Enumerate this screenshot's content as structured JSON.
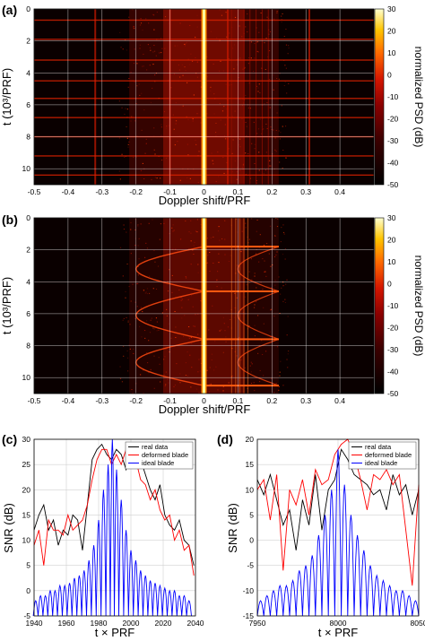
{
  "colors": {
    "background": "#ffffff",
    "spectrogram_bg": "#0a0000",
    "heat_low": "#000000",
    "heat_mid": "#cc1100",
    "heat_high": "#ffff66",
    "real": "#000000",
    "deformed": "#ff0000",
    "ideal": "#0000ff"
  },
  "panels": {
    "a": {
      "label": "(a)"
    },
    "b": {
      "label": "(b)"
    },
    "c": {
      "label": "(c)"
    },
    "d": {
      "label": "(d)"
    }
  },
  "chart_data": [
    {
      "id": "a",
      "type": "heatmap",
      "title": "",
      "xlabel": "Doppler shift/PRF",
      "ylabel": "t (10³/PRF)",
      "xlim": [
        -0.5,
        0.5
      ],
      "ylim": [
        11,
        0
      ],
      "xticks": [
        "-0.5",
        "-0.4",
        "-0.3",
        "-0.2",
        "-0.1",
        "0",
        "0.1",
        "0.2",
        "0.3",
        "0.4"
      ],
      "yticks": [
        "0",
        "2",
        "4",
        "6",
        "8",
        "10"
      ],
      "colorbar": {
        "label": "normalized PSD (dB)",
        "range": [
          -50,
          30
        ],
        "ticks": [
          "30",
          "20",
          "10",
          "0",
          "-10",
          "-20",
          "-30",
          "-40",
          "-50"
        ]
      },
      "grid": true,
      "features": {
        "carrier_doppler": 0,
        "flash_times": [
          0.7,
          1.9,
          3.2,
          4.5,
          5.6,
          6.8,
          8.0,
          9.2,
          10.4
        ],
        "blade_lines": [
          -0.32,
          -0.1,
          0.07,
          0.31
        ]
      }
    },
    {
      "id": "b",
      "type": "heatmap",
      "title": "",
      "xlabel": "Doppler shift/PRF",
      "ylabel": "t (10³/PRF)",
      "xlim": [
        -0.5,
        0.5
      ],
      "ylim": [
        11,
        0
      ],
      "xticks": [
        "-0.5",
        "-0.4",
        "-0.3",
        "-0.2",
        "-0.1",
        "0",
        "0.1",
        "0.2",
        "0.3",
        "0.4"
      ],
      "yticks": [
        "0",
        "2",
        "4",
        "6",
        "8",
        "10"
      ],
      "colorbar": {
        "label": "normalized PSD (dB)",
        "range": [
          -50,
          30
        ],
        "ticks": [
          "30",
          "20",
          "10",
          "0",
          "-10",
          "-20",
          "-30",
          "-40",
          "-50"
        ]
      },
      "grid": true,
      "features": {
        "carrier_doppler": 0,
        "flash_times": [
          1.8,
          4.6,
          7.6,
          10.5
        ],
        "flash_extent": [
          0,
          0.22
        ],
        "arc_min_doppler": -0.2
      }
    },
    {
      "id": "c",
      "type": "line",
      "title": "",
      "xlabel": "t × PRF",
      "ylabel": "SNR (dB)",
      "xlim": [
        1940,
        2040
      ],
      "ylim": [
        -5,
        30
      ],
      "xticks": [
        "1940",
        "1960",
        "1980",
        "2000",
        "2020",
        "2040"
      ],
      "yticks": [
        "-5",
        "0",
        "5",
        "10",
        "15",
        "20",
        "25",
        "30"
      ],
      "grid": true,
      "legend": "top-right",
      "series": [
        {
          "name": "real data",
          "color": "#000000",
          "x": [
            1940,
            1943,
            1946,
            1949,
            1952,
            1955,
            1958,
            1961,
            1964,
            1967,
            1970,
            1973,
            1976,
            1979,
            1982,
            1985,
            1988,
            1991,
            1994,
            1997,
            2000,
            2003,
            2006,
            2009,
            2012,
            2015,
            2018,
            2021,
            2024,
            2027,
            2030,
            2033,
            2036,
            2039
          ],
          "y": [
            12,
            15,
            17,
            12,
            14,
            9,
            12,
            11,
            15,
            14,
            8,
            17,
            26,
            28,
            29,
            27,
            26,
            28,
            27,
            24,
            28,
            26,
            26,
            23,
            20,
            18,
            21,
            15,
            13,
            12,
            14,
            10,
            9,
            5
          ]
        },
        {
          "name": "deformed blade",
          "color": "#ff0000",
          "x": [
            1940,
            1943,
            1946,
            1949,
            1952,
            1955,
            1958,
            1961,
            1964,
            1967,
            1970,
            1973,
            1976,
            1979,
            1982,
            1985,
            1988,
            1991,
            1994,
            1997,
            2000,
            2003,
            2006,
            2009,
            2012,
            2015,
            2018,
            2021,
            2024,
            2027,
            2030,
            2033,
            2036,
            2039
          ],
          "y": [
            9,
            12,
            5,
            14,
            12,
            12,
            11,
            15,
            12,
            13,
            14,
            17,
            22,
            26,
            28,
            28,
            25,
            27,
            25,
            28,
            26,
            26,
            22,
            21,
            18,
            20,
            16,
            14,
            15,
            10,
            12,
            8,
            9,
            3
          ]
        },
        {
          "name": "ideal blade",
          "color": "#0000ff",
          "peaks_x": [
            1941,
            1944,
            1947,
            1950,
            1953,
            1956,
            1959,
            1962,
            1965,
            1968,
            1971,
            1974,
            1977,
            1980,
            1983,
            1986,
            1988.5,
            1991,
            1994,
            1997,
            2000,
            2003,
            2006,
            2009,
            2012,
            2015,
            2018,
            2021,
            2024,
            2027,
            2030,
            2033,
            2036
          ],
          "peaks_y": [
            -2,
            -1,
            -1,
            0,
            0,
            1,
            1,
            1.5,
            2.5,
            3,
            4,
            6,
            9,
            14,
            20,
            25,
            30,
            24,
            18,
            12,
            8,
            6,
            4,
            3,
            2,
            1.5,
            1,
            0.5,
            0,
            0,
            -1,
            -1,
            -2
          ]
        }
      ]
    },
    {
      "id": "d",
      "type": "line",
      "title": "",
      "xlabel": "t × PRF",
      "ylabel": "SNR (dB)",
      "xlim": [
        7950,
        8050
      ],
      "ylim": [
        -15,
        20
      ],
      "xticks": [
        "7950",
        "8000",
        "8050"
      ],
      "yticks": [
        "-15",
        "-10",
        "-5",
        "0",
        "5",
        "10",
        "15",
        "20"
      ],
      "grid": true,
      "legend": "top-right",
      "series": [
        {
          "name": "real data",
          "color": "#000000",
          "x": [
            7950,
            7954,
            7958,
            7962,
            7966,
            7970,
            7974,
            7978,
            7982,
            7986,
            7990,
            7994,
            7998,
            8002,
            8006,
            8010,
            8014,
            8018,
            8022,
            8026,
            8030,
            8034,
            8038,
            8042,
            8046,
            8050
          ],
          "y": [
            12,
            9,
            13,
            8,
            3,
            6,
            -2,
            8,
            3,
            13,
            2,
            10,
            12,
            18,
            16,
            13,
            12,
            11,
            9,
            10,
            6,
            13,
            9,
            11,
            5,
            10
          ]
        },
        {
          "name": "deformed blade",
          "color": "#ff0000",
          "x": [
            7950,
            7954,
            7958,
            7962,
            7966,
            7970,
            7974,
            7978,
            7982,
            7986,
            7990,
            7994,
            7998,
            8002,
            8006,
            8010,
            8014,
            8018,
            8022,
            8026,
            8030,
            8034,
            8038,
            8042,
            8046,
            8050
          ],
          "y": [
            10,
            12,
            4,
            13,
            -6,
            10,
            7,
            12,
            5,
            14,
            11,
            12,
            17,
            19,
            20,
            17,
            12,
            6,
            13,
            12,
            14,
            11,
            13,
            2,
            -9,
            11
          ]
        },
        {
          "name": "ideal blade",
          "color": "#0000ff",
          "peaks_x": [
            7952,
            7956,
            7960,
            7964,
            7968,
            7972,
            7976,
            7980,
            7984,
            7988,
            7992,
            7996,
            8000,
            8004,
            8008,
            8012,
            8016,
            8020,
            8024,
            8028,
            8032,
            8036,
            8040,
            8044,
            8048
          ],
          "peaks_y": [
            -12,
            -11,
            -10,
            -9,
            -9,
            -8,
            -6,
            -5,
            -3,
            1,
            5,
            10,
            18,
            11,
            5,
            1,
            -2,
            -5,
            -7,
            -8,
            -9,
            -10,
            -10,
            -11,
            -12
          ]
        }
      ]
    }
  ]
}
